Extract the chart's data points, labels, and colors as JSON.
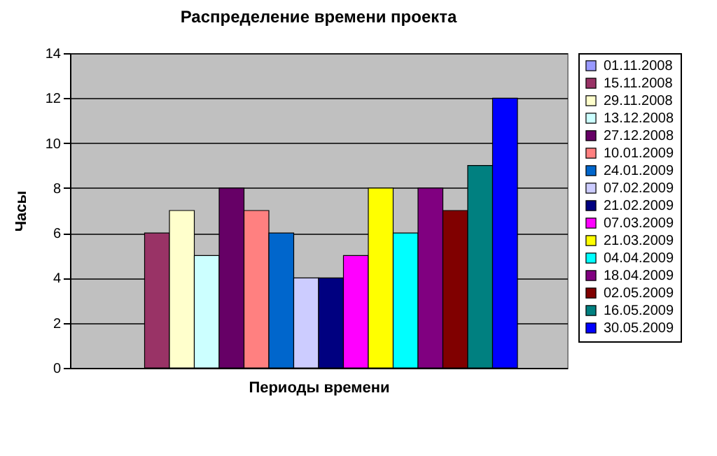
{
  "chart_data": {
    "type": "bar",
    "title": "Распределение времени проекта",
    "xlabel": "Периоды времени",
    "ylabel": "Часы",
    "categories": [
      null
    ],
    "series": [
      {
        "name": "01.11.2008",
        "color": "#9999ff",
        "values": [
          null
        ]
      },
      {
        "name": "15.11.2008",
        "color": "#993366",
        "values": [
          6
        ]
      },
      {
        "name": "29.11.2008",
        "color": "#ffffcc",
        "values": [
          7
        ]
      },
      {
        "name": "13.12.2008",
        "color": "#ccffff",
        "values": [
          5
        ]
      },
      {
        "name": "27.12.2008",
        "color": "#660066",
        "values": [
          8
        ]
      },
      {
        "name": "10.01.2009",
        "color": "#ff8080",
        "values": [
          7
        ]
      },
      {
        "name": "24.01.2009",
        "color": "#0066cc",
        "values": [
          6
        ]
      },
      {
        "name": "07.02.2009",
        "color": "#ccccff",
        "values": [
          4
        ]
      },
      {
        "name": "21.02.2009",
        "color": "#000080",
        "values": [
          4
        ]
      },
      {
        "name": "07.03.2009",
        "color": "#ff00ff",
        "values": [
          5
        ]
      },
      {
        "name": "21.03.2009",
        "color": "#ffff00",
        "values": [
          8
        ]
      },
      {
        "name": "04.04.2009",
        "color": "#00ffff",
        "values": [
          6
        ]
      },
      {
        "name": "18.04.2009",
        "color": "#800080",
        "values": [
          8
        ]
      },
      {
        "name": "02.05.2009",
        "color": "#800000",
        "values": [
          7
        ]
      },
      {
        "name": "16.05.2009",
        "color": "#008080",
        "values": [
          9
        ]
      },
      {
        "name": "30.05.2009",
        "color": "#0000ff",
        "values": [
          12
        ]
      }
    ],
    "ylim": [
      0,
      14
    ],
    "yticks": [
      0,
      2,
      4,
      6,
      8,
      10,
      12,
      14
    ],
    "grid": "y",
    "legend": "right"
  }
}
